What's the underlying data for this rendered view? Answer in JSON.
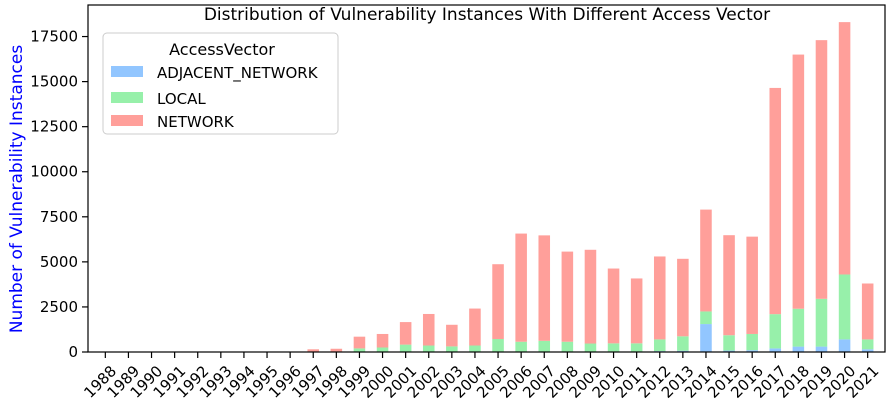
{
  "chart_data": {
    "type": "bar",
    "stacked": true,
    "title": "Distribution of Vulnerability Instances With Different Access Vector",
    "xlabel": "",
    "ylabel": "Number of Vulnerability Instances",
    "ylabel_color": "#0000ff",
    "ylim": [
      0,
      19250
    ],
    "yticks": [
      0,
      2500,
      5000,
      7500,
      10000,
      12500,
      15000,
      17500
    ],
    "ytick_labels": [
      "0",
      "2500",
      "5000",
      "7500",
      "10000",
      "12500",
      "15000",
      "17500"
    ],
    "categories": [
      "1988",
      "1989",
      "1990",
      "1991",
      "1992",
      "1993",
      "1994",
      "1995",
      "1996",
      "1997",
      "1998",
      "1999",
      "2000",
      "2001",
      "2002",
      "2003",
      "2004",
      "2005",
      "2006",
      "2007",
      "2008",
      "2009",
      "2010",
      "2011",
      "2012",
      "2013",
      "2014",
      "2015",
      "2016",
      "2017",
      "2018",
      "2019",
      "2020",
      "2021"
    ],
    "legend": {
      "title": "AccessVector",
      "position": "top-left"
    },
    "series": [
      {
        "name": "ADJACENT_NETWORK",
        "color": "#92c6ff",
        "values": [
          0,
          0,
          0,
          0,
          0,
          0,
          0,
          0,
          0,
          0,
          0,
          0,
          0,
          10,
          10,
          10,
          10,
          20,
          20,
          20,
          20,
          20,
          30,
          30,
          50,
          70,
          1550,
          80,
          100,
          200,
          300,
          300,
          700,
          150
        ]
      },
      {
        "name": "LOCAL",
        "color": "#97f0aa",
        "values": [
          0,
          0,
          0,
          0,
          0,
          0,
          0,
          0,
          0,
          20,
          30,
          200,
          250,
          400,
          350,
          300,
          350,
          700,
          550,
          600,
          550,
          450,
          450,
          450,
          650,
          800,
          700,
          850,
          900,
          1900,
          2100,
          2650,
          3600,
          550
        ]
      },
      {
        "name": "NETWORK",
        "color": "#ff9f9a",
        "values": [
          2,
          2,
          5,
          5,
          10,
          5,
          10,
          15,
          20,
          130,
          150,
          650,
          750,
          1250,
          1750,
          1200,
          2050,
          4150,
          6000,
          5850,
          5000,
          5200,
          4150,
          3600,
          4600,
          4300,
          5650,
          5550,
          5400,
          12550,
          14100,
          14350,
          14000,
          3100
        ]
      }
    ]
  }
}
